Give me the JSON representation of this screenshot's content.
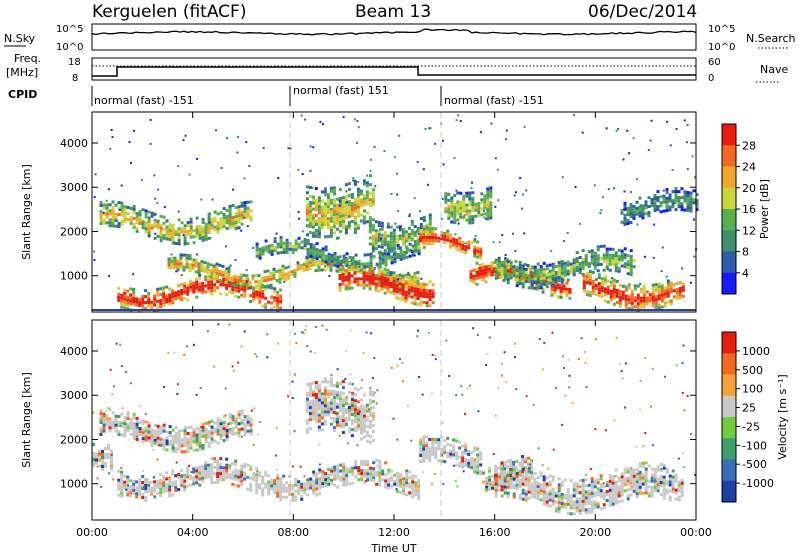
{
  "header": {
    "station": "Kerguelen (fitACF)",
    "beam": "Beam 13",
    "date": "06/Dec/2014"
  },
  "strip_labels": {
    "nsky": "N.Sky",
    "nsearch": "N.Search",
    "freq_line1": "Freq.",
    "freq_line2": "[MHz]",
    "nave": "Nave",
    "cpid": "CPID",
    "nsky_ticks": [
      "10^5",
      "10^0"
    ],
    "nsearch_ticks": [
      "10^5",
      "10^0"
    ],
    "freq_ticks": [
      "18",
      "8"
    ],
    "nave_ticks": [
      "60",
      "0"
    ]
  },
  "cpid_segments": [
    {
      "label": "normal (fast) -151",
      "start": 0.0,
      "end": 8.0
    },
    {
      "label": "normal (fast) 151",
      "start": 8.0,
      "end": 14.0
    },
    {
      "label": "normal (fast) -151",
      "start": 14.0,
      "end": 24.0
    }
  ],
  "colors": {
    "power_scale": [
      "#1a1aff",
      "#2f5ca8",
      "#3f8f6a",
      "#58b04c",
      "#c8d63a",
      "#f0a82c",
      "#f26a1e",
      "#ee1a10"
    ],
    "velocity_scale": [
      "#1f3fa8",
      "#3a6fb8",
      "#3f9f6a",
      "#6fcf3a",
      "#c8c8c8",
      "#f5a238",
      "#f26a1e",
      "#e81a10"
    ],
    "ground_scatter": "#c0c0c0",
    "axis": "#000000",
    "guide": "#c8c8c8"
  },
  "chart_data": [
    {
      "type": "heatmap",
      "panel": "power",
      "ylabel": "Slant Range [km]",
      "y_ticks": [
        "4000",
        "3000",
        "2000",
        "1000"
      ],
      "ylim": [
        180,
        4700
      ],
      "xlim": [
        0,
        24
      ],
      "colorbar": {
        "label": "Power [dB]",
        "ticks": [
          "28",
          "24",
          "20",
          "16",
          "12",
          "8",
          "4"
        ],
        "range": [
          0,
          30
        ]
      },
      "echo_bands": [
        {
          "t_start": 0.3,
          "t_end": 6.3,
          "range_low": 1900,
          "range_high": 2500,
          "level": 0.55
        },
        {
          "t_start": 1.0,
          "t_end": 7.5,
          "range_low": 400,
          "range_high": 900,
          "level": 0.9
        },
        {
          "t_start": 3.0,
          "t_end": 13.0,
          "range_low": 900,
          "range_high": 1300,
          "level": 0.6
        },
        {
          "t_start": 6.5,
          "t_end": 13.0,
          "range_low": 1300,
          "range_high": 1700,
          "level": 0.35
        },
        {
          "t_start": 8.5,
          "t_end": 11.2,
          "range_low": 2000,
          "range_high": 3200,
          "level": 0.55
        },
        {
          "t_start": 9.8,
          "t_end": 13.5,
          "range_low": 500,
          "range_high": 1100,
          "level": 0.95
        },
        {
          "t_start": 11.0,
          "t_end": 13.5,
          "range_low": 1700,
          "range_high": 2400,
          "level": 0.45
        },
        {
          "t_start": 13.0,
          "t_end": 15.5,
          "range_low": 1500,
          "range_high": 1900,
          "level": 0.85
        },
        {
          "t_start": 14.0,
          "t_end": 15.8,
          "range_low": 2400,
          "range_high": 3100,
          "level": 0.5
        },
        {
          "t_start": 15.0,
          "t_end": 19.0,
          "range_low": 700,
          "range_high": 1200,
          "level": 0.9
        },
        {
          "t_start": 16.0,
          "t_end": 21.5,
          "range_low": 900,
          "range_high": 1500,
          "level": 0.4
        },
        {
          "t_start": 19.5,
          "t_end": 23.5,
          "range_low": 400,
          "range_high": 1000,
          "level": 0.85
        },
        {
          "t_start": 21.0,
          "t_end": 24.0,
          "range_low": 2300,
          "range_high": 2800,
          "level": 0.3
        }
      ]
    },
    {
      "type": "heatmap",
      "panel": "velocity",
      "ylabel": "Slant Range [km]",
      "xlabel": "Time UT",
      "x_ticks": [
        "00:00",
        "04:00",
        "08:00",
        "12:00",
        "16:00",
        "20:00",
        "00:00"
      ],
      "y_ticks": [
        "4000",
        "3000",
        "2000",
        "1000"
      ],
      "ylim": [
        180,
        4700
      ],
      "xlim": [
        0,
        24
      ],
      "colorbar": {
        "label": "Velocity [m s⁻¹]",
        "ticks": [
          "1000",
          "500",
          "100",
          "25",
          "-25",
          "-100",
          "-500",
          "-1000"
        ],
        "range": [
          -1000,
          1000
        ]
      },
      "echo_bands": [
        {
          "t_start": 0.3,
          "t_end": 6.3,
          "range_low": 1900,
          "range_high": 2500,
          "level": 0.5
        },
        {
          "t_start": 1.0,
          "t_end": 13.0,
          "range_low": 800,
          "range_high": 1400,
          "level": 0.5
        },
        {
          "t_start": 8.5,
          "t_end": 11.2,
          "range_low": 2000,
          "range_high": 3200,
          "level": 0.5
        },
        {
          "t_start": 13.0,
          "t_end": 15.5,
          "range_low": 1300,
          "range_high": 1900,
          "level": 0.5
        },
        {
          "t_start": 15.5,
          "t_end": 17.5,
          "range_low": 900,
          "range_high": 1500,
          "level": 0.8
        },
        {
          "t_start": 16.0,
          "t_end": 23.5,
          "range_low": 500,
          "range_high": 1300,
          "level": 0.45
        },
        {
          "t_start": 0.0,
          "t_end": 0.8,
          "range_low": 1500,
          "range_high": 2100,
          "level": 0.2
        }
      ]
    }
  ]
}
